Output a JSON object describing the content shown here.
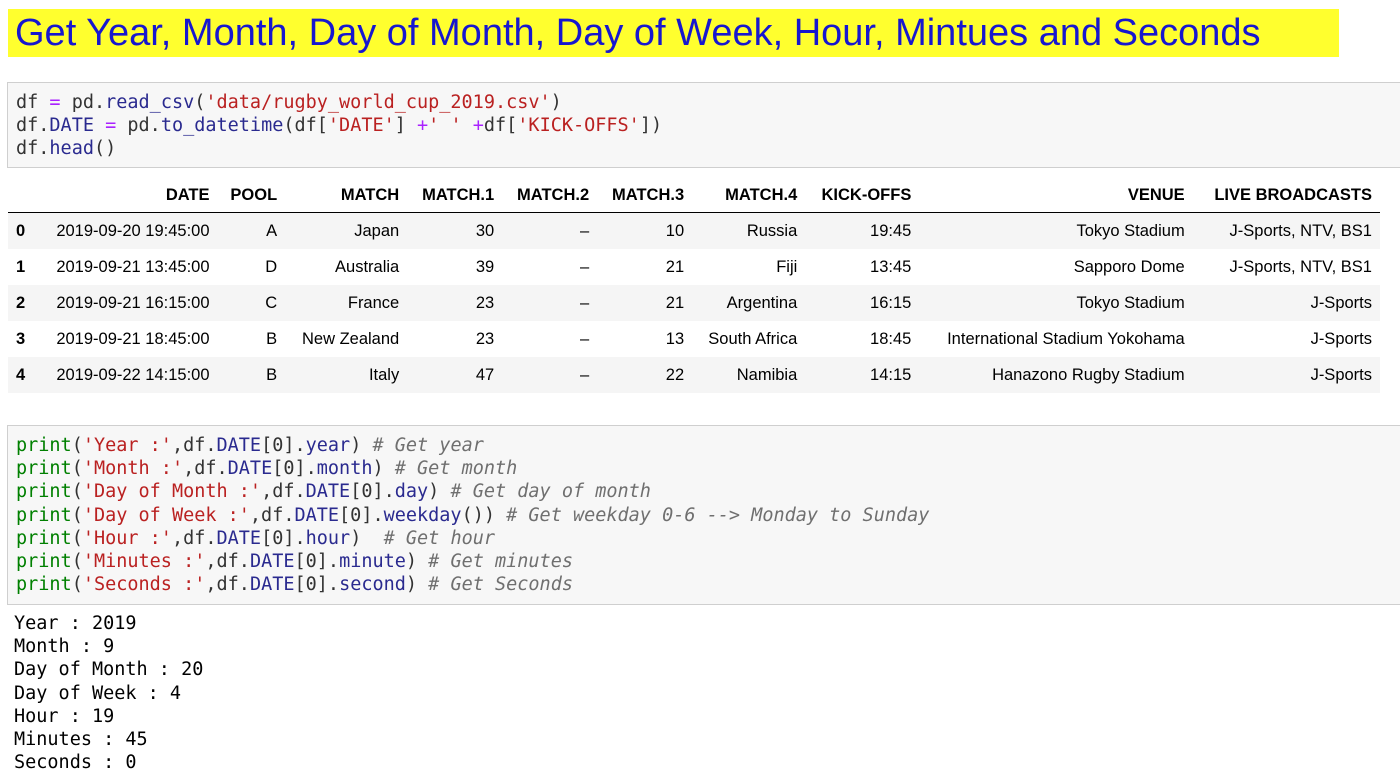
{
  "title": "Get Year, Month, Day of Month, Day of Week, Hour, Mintues and Seconds",
  "cell1": {
    "lines": [
      [
        {
          "t": "df ",
          "c": ""
        },
        {
          "t": "=",
          "c": "op"
        },
        {
          "t": " pd.",
          "c": ""
        },
        {
          "t": "read_csv",
          "c": "attr"
        },
        {
          "t": "(",
          "c": ""
        },
        {
          "t": "'data/rugby_world_cup_2019.csv'",
          "c": "str"
        },
        {
          "t": ")",
          "c": ""
        }
      ],
      [
        {
          "t": "df.",
          "c": ""
        },
        {
          "t": "DATE",
          "c": "attr"
        },
        {
          "t": " ",
          "c": ""
        },
        {
          "t": "=",
          "c": "op"
        },
        {
          "t": " pd.",
          "c": ""
        },
        {
          "t": "to_datetime",
          "c": "attr"
        },
        {
          "t": "(df[",
          "c": ""
        },
        {
          "t": "'DATE'",
          "c": "str"
        },
        {
          "t": "] ",
          "c": ""
        },
        {
          "t": "+",
          "c": "op"
        },
        {
          "t": "' '",
          "c": "str"
        },
        {
          "t": " ",
          "c": ""
        },
        {
          "t": "+",
          "c": "op"
        },
        {
          "t": "df[",
          "c": ""
        },
        {
          "t": "'KICK-OFFS'",
          "c": "str"
        },
        {
          "t": "])",
          "c": ""
        }
      ],
      [
        {
          "t": "df.",
          "c": ""
        },
        {
          "t": "head",
          "c": "attr"
        },
        {
          "t": "()",
          "c": ""
        }
      ]
    ]
  },
  "table": {
    "columns": [
      "",
      "DATE",
      "POOL",
      "MATCH",
      "MATCH.1",
      "MATCH.2",
      "MATCH.3",
      "MATCH.4",
      "KICK-OFFS",
      "VENUE",
      "LIVE BROADCASTS"
    ],
    "rows": [
      [
        "0",
        "2019-09-20 19:45:00",
        "A",
        "Japan",
        "30",
        "–",
        "10",
        "Russia",
        "19:45",
        "Tokyo Stadium",
        "J-Sports, NTV, BS1"
      ],
      [
        "1",
        "2019-09-21 13:45:00",
        "D",
        "Australia",
        "39",
        "–",
        "21",
        "Fiji",
        "13:45",
        "Sapporo Dome",
        "J-Sports, NTV, BS1"
      ],
      [
        "2",
        "2019-09-21 16:15:00",
        "C",
        "France",
        "23",
        "–",
        "21",
        "Argentina",
        "16:15",
        "Tokyo Stadium",
        "J-Sports"
      ],
      [
        "3",
        "2019-09-21 18:45:00",
        "B",
        "New Zealand",
        "23",
        "–",
        "13",
        "South Africa",
        "18:45",
        "International Stadium Yokohama",
        "J-Sports"
      ],
      [
        "4",
        "2019-09-22 14:15:00",
        "B",
        "Italy",
        "47",
        "–",
        "22",
        "Namibia",
        "14:15",
        "Hanazono Rugby Stadium",
        "J-Sports"
      ]
    ]
  },
  "cell2": {
    "lines": [
      [
        {
          "t": "print",
          "c": "kw"
        },
        {
          "t": "(",
          "c": ""
        },
        {
          "t": "'Year :'",
          "c": "str"
        },
        {
          "t": ",df.",
          "c": ""
        },
        {
          "t": "DATE",
          "c": "attr"
        },
        {
          "t": "[0].",
          "c": ""
        },
        {
          "t": "year",
          "c": "attr"
        },
        {
          "t": ") ",
          "c": ""
        },
        {
          "t": "# Get year",
          "c": "com"
        }
      ],
      [
        {
          "t": "print",
          "c": "kw"
        },
        {
          "t": "(",
          "c": ""
        },
        {
          "t": "'Month :'",
          "c": "str"
        },
        {
          "t": ",df.",
          "c": ""
        },
        {
          "t": "DATE",
          "c": "attr"
        },
        {
          "t": "[0].",
          "c": ""
        },
        {
          "t": "month",
          "c": "attr"
        },
        {
          "t": ") ",
          "c": ""
        },
        {
          "t": "# Get month",
          "c": "com"
        }
      ],
      [
        {
          "t": "print",
          "c": "kw"
        },
        {
          "t": "(",
          "c": ""
        },
        {
          "t": "'Day of Month :'",
          "c": "str"
        },
        {
          "t": ",df.",
          "c": ""
        },
        {
          "t": "DATE",
          "c": "attr"
        },
        {
          "t": "[0].",
          "c": ""
        },
        {
          "t": "day",
          "c": "attr"
        },
        {
          "t": ") ",
          "c": ""
        },
        {
          "t": "# Get day of month",
          "c": "com"
        }
      ],
      [
        {
          "t": "print",
          "c": "kw"
        },
        {
          "t": "(",
          "c": ""
        },
        {
          "t": "'Day of Week :'",
          "c": "str"
        },
        {
          "t": ",df.",
          "c": ""
        },
        {
          "t": "DATE",
          "c": "attr"
        },
        {
          "t": "[0].",
          "c": ""
        },
        {
          "t": "weekday",
          "c": "attr"
        },
        {
          "t": "()) ",
          "c": ""
        },
        {
          "t": "# Get weekday 0-6 --> Monday to Sunday",
          "c": "com"
        }
      ],
      [
        {
          "t": "print",
          "c": "kw"
        },
        {
          "t": "(",
          "c": ""
        },
        {
          "t": "'Hour :'",
          "c": "str"
        },
        {
          "t": ",df.",
          "c": ""
        },
        {
          "t": "DATE",
          "c": "attr"
        },
        {
          "t": "[0].",
          "c": ""
        },
        {
          "t": "hour",
          "c": "attr"
        },
        {
          "t": ")  ",
          "c": ""
        },
        {
          "t": "# Get hour",
          "c": "com"
        }
      ],
      [
        {
          "t": "print",
          "c": "kw"
        },
        {
          "t": "(",
          "c": ""
        },
        {
          "t": "'Minutes :'",
          "c": "str"
        },
        {
          "t": ",df.",
          "c": ""
        },
        {
          "t": "DATE",
          "c": "attr"
        },
        {
          "t": "[0].",
          "c": ""
        },
        {
          "t": "minute",
          "c": "attr"
        },
        {
          "t": ") ",
          "c": ""
        },
        {
          "t": "# Get minutes",
          "c": "com"
        }
      ],
      [
        {
          "t": "print",
          "c": "kw"
        },
        {
          "t": "(",
          "c": ""
        },
        {
          "t": "'Seconds :'",
          "c": "str"
        },
        {
          "t": ",df.",
          "c": ""
        },
        {
          "t": "DATE",
          "c": "attr"
        },
        {
          "t": "[0].",
          "c": ""
        },
        {
          "t": "second",
          "c": "attr"
        },
        {
          "t": ") ",
          "c": ""
        },
        {
          "t": "# Get Seconds",
          "c": "com"
        }
      ]
    ]
  },
  "output": [
    "Year : 2019",
    "Month : 9",
    "Day of Month : 20",
    "Day of Week : 4",
    "Hour : 19",
    "Minutes : 45",
    "Seconds : 0"
  ],
  "colors": {
    "title_bg": "#ffff2e",
    "title_fg": "#1717cf",
    "cell_bg": "#f7f7f7"
  }
}
